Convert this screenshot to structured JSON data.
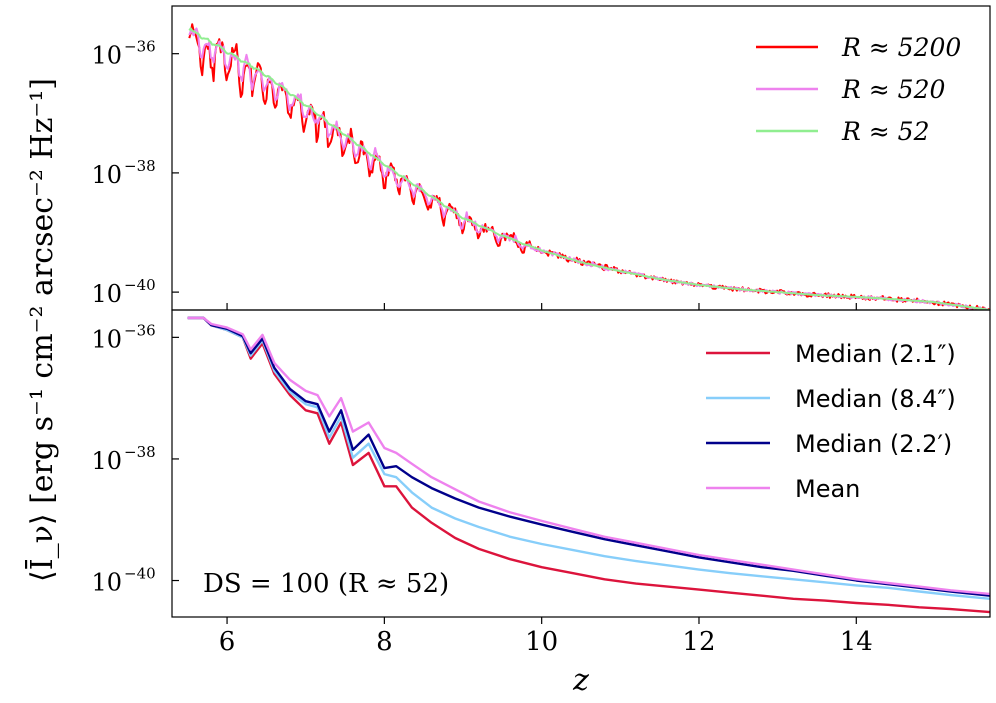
{
  "figure": {
    "ylabel": "⟨Ī_ν⟩ [erg s⁻¹ cm⁻² arcsec⁻² Hz⁻¹]",
    "xlabel": "z"
  },
  "chart_data": [
    {
      "type": "line",
      "panel": "top",
      "xlabel": "",
      "ylabel": "⟨Ī_ν⟩ [erg s⁻¹ cm⁻² arcsec⁻² Hz⁻¹]",
      "yscale": "log",
      "xlim": [
        5.3,
        15.7
      ],
      "ylim_log10": [
        -40.3,
        -35.2
      ],
      "yticks": [
        {
          "base": "10",
          "exp": "−36",
          "value": -36
        },
        {
          "base": "10",
          "exp": "−38",
          "value": -38
        },
        {
          "base": "10",
          "exp": "−40",
          "value": -40
        }
      ],
      "legend_position": "top-right",
      "series": [
        {
          "name": "R ≈ 5200",
          "color": "#ff0000",
          "noise": 0.55,
          "seed": 11
        },
        {
          "name": "R ≈ 520",
          "color": "#ee82ee",
          "noise": 0.35,
          "seed": 23
        },
        {
          "name": "R ≈ 52",
          "color": "#90ee90",
          "noise": 0.04,
          "seed": 37
        }
      ],
      "trend": {
        "x": [
          5.55,
          6.0,
          6.5,
          7.0,
          7.5,
          8.0,
          8.5,
          9.0,
          9.5,
          10.0,
          10.5,
          11.0,
          11.5,
          12.0,
          12.5,
          13.0,
          13.5,
          14.0,
          14.5,
          15.0,
          15.7
        ],
        "log10_y": [
          -35.6,
          -35.95,
          -36.35,
          -36.85,
          -37.35,
          -37.85,
          -38.3,
          -38.75,
          -39.05,
          -39.3,
          -39.5,
          -39.65,
          -39.78,
          -39.88,
          -39.95,
          -40.0,
          -40.05,
          -40.08,
          -40.12,
          -40.17,
          -40.3
        ]
      },
      "absorption_features_x": [
        5.68,
        5.82,
        6.0,
        6.18,
        6.32,
        6.48,
        6.62,
        6.8,
        6.98,
        7.14,
        7.3,
        7.48,
        7.64,
        7.82,
        8.0,
        8.18,
        8.36,
        8.56,
        8.76,
        8.98,
        9.2,
        9.45,
        9.75
      ]
    },
    {
      "type": "line",
      "panel": "bottom",
      "xlabel": "z",
      "ylabel": "⟨Ī_ν⟩ [erg s⁻¹ cm⁻² arcsec⁻² Hz⁻¹]",
      "yscale": "log",
      "xlim": [
        5.3,
        15.7
      ],
      "ylim_log10": [
        -40.6,
        -35.55
      ],
      "xticks": [
        "6",
        "8",
        "10",
        "12",
        "14"
      ],
      "xtick_values": [
        6,
        8,
        10,
        12,
        14
      ],
      "yticks": [
        {
          "base": "10",
          "exp": "−36",
          "value": -36
        },
        {
          "base": "10",
          "exp": "−38",
          "value": -38
        },
        {
          "base": "10",
          "exp": "−40",
          "value": -40
        }
      ],
      "legend_position": "top-right",
      "annotation": "DS = 100 (R ≈ 52)",
      "x": [
        5.5,
        5.7,
        5.8,
        6.0,
        6.2,
        6.3,
        6.45,
        6.6,
        6.8,
        7.0,
        7.15,
        7.3,
        7.45,
        7.6,
        7.8,
        8.0,
        8.15,
        8.35,
        8.6,
        8.9,
        9.2,
        9.6,
        10.0,
        10.4,
        10.8,
        11.2,
        11.6,
        12.0,
        12.4,
        12.8,
        13.2,
        13.6,
        14.0,
        14.4,
        14.8,
        15.2,
        15.7
      ],
      "series": [
        {
          "name": "Median (2.1″)",
          "color": "#dc143c",
          "values": [
            -35.68,
            -35.68,
            -35.8,
            -35.88,
            -36.0,
            -36.35,
            -36.1,
            -36.6,
            -36.95,
            -37.2,
            -37.25,
            -37.75,
            -37.4,
            -38.1,
            -37.9,
            -38.45,
            -38.45,
            -38.8,
            -39.05,
            -39.3,
            -39.48,
            -39.65,
            -39.78,
            -39.88,
            -39.98,
            -40.05,
            -40.1,
            -40.15,
            -40.2,
            -40.25,
            -40.3,
            -40.33,
            -40.37,
            -40.4,
            -40.44,
            -40.47,
            -40.52
          ]
        },
        {
          "name": "Median (8.4″)",
          "color": "#87cefa",
          "values": [
            -35.68,
            -35.68,
            -35.8,
            -35.88,
            -36.0,
            -36.3,
            -36.05,
            -36.55,
            -36.9,
            -37.1,
            -37.15,
            -37.65,
            -37.3,
            -37.98,
            -37.75,
            -38.25,
            -38.3,
            -38.55,
            -38.8,
            -38.98,
            -39.12,
            -39.28,
            -39.4,
            -39.5,
            -39.6,
            -39.68,
            -39.75,
            -39.82,
            -39.88,
            -39.93,
            -39.98,
            -40.03,
            -40.08,
            -40.12,
            -40.18,
            -40.24,
            -40.3
          ]
        },
        {
          "name": "Median (2.2′)",
          "color": "#00008b",
          "values": [
            -35.68,
            -35.68,
            -35.8,
            -35.86,
            -35.98,
            -36.26,
            -36.02,
            -36.5,
            -36.85,
            -37.05,
            -37.1,
            -37.55,
            -37.2,
            -37.85,
            -37.6,
            -38.15,
            -38.12,
            -38.3,
            -38.48,
            -38.65,
            -38.8,
            -38.95,
            -39.08,
            -39.2,
            -39.32,
            -39.42,
            -39.52,
            -39.62,
            -39.7,
            -39.78,
            -39.84,
            -39.92,
            -40.0,
            -40.06,
            -40.12,
            -40.18,
            -40.25
          ]
        },
        {
          "name": "Mean",
          "color": "#ee82ee",
          "values": [
            -35.68,
            -35.68,
            -35.78,
            -35.84,
            -35.95,
            -36.2,
            -35.96,
            -36.42,
            -36.7,
            -36.88,
            -36.95,
            -37.3,
            -37.0,
            -37.55,
            -37.4,
            -37.82,
            -37.9,
            -38.08,
            -38.3,
            -38.5,
            -38.7,
            -38.88,
            -39.02,
            -39.15,
            -39.28,
            -39.38,
            -39.48,
            -39.58,
            -39.66,
            -39.74,
            -39.82,
            -39.9,
            -39.98,
            -40.04,
            -40.1,
            -40.16,
            -40.22
          ]
        }
      ]
    }
  ]
}
